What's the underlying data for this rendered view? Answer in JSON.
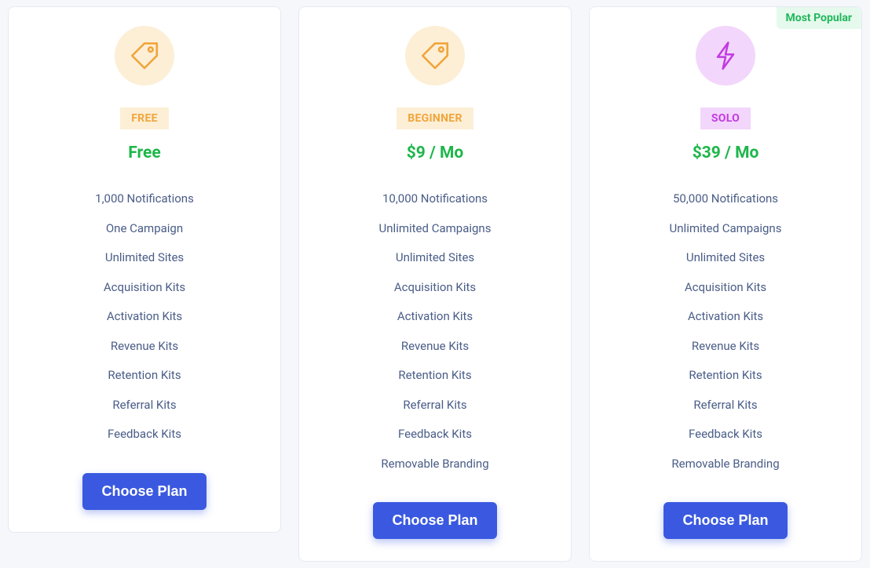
{
  "colors": {
    "page_bg": "#f5f7fb",
    "card_bg": "#ffffff",
    "card_border": "#e6e9f2",
    "feature_text": "#4a5d87",
    "price_text": "#1eb64a",
    "button_bg": "#3a59e0",
    "button_text": "#ffffff",
    "popular_bg": "#e6f9ed",
    "popular_text": "#22b85c"
  },
  "button_label": "Choose Plan",
  "popular_label": "Most Popular",
  "plans": [
    {
      "id": "free",
      "icon": "tag",
      "icon_bg": "#fcefd6",
      "icon_stroke": "#f1a43b",
      "tag_label": "FREE",
      "tag_bg": "#fcefd6",
      "tag_text": "#f1a43b",
      "price": "Free",
      "price_color": "#1eb64a",
      "popular": false,
      "features": [
        "1,000 Notifications",
        "One Campaign",
        "Unlimited Sites",
        "Acquisition Kits",
        "Activation Kits",
        "Revenue Kits",
        "Retention Kits",
        "Referral Kits",
        "Feedback Kits"
      ]
    },
    {
      "id": "beginner",
      "icon": "tag",
      "icon_bg": "#fcefd6",
      "icon_stroke": "#f1a43b",
      "tag_label": "BEGINNER",
      "tag_bg": "#fcefd6",
      "tag_text": "#f1a43b",
      "price": "$9 / Mo",
      "price_color": "#1eb64a",
      "popular": false,
      "features": [
        "10,000 Notifications",
        "Unlimited Campaigns",
        "Unlimited Sites",
        "Acquisition Kits",
        "Activation Kits",
        "Revenue Kits",
        "Retention Kits",
        "Referral Kits",
        "Feedback Kits",
        "Removable Branding"
      ]
    },
    {
      "id": "solo",
      "icon": "bolt",
      "icon_bg": "#f3d6fb",
      "icon_stroke": "#c23ae2",
      "tag_label": "SOLO",
      "tag_bg": "#f3d6fb",
      "tag_text": "#c23ae2",
      "price": "$39 / Mo",
      "price_color": "#1eb64a",
      "popular": true,
      "features": [
        "50,000 Notifications",
        "Unlimited Campaigns",
        "Unlimited Sites",
        "Acquisition Kits",
        "Activation Kits",
        "Revenue Kits",
        "Retention Kits",
        "Referral Kits",
        "Feedback Kits",
        "Removable Branding"
      ]
    }
  ]
}
